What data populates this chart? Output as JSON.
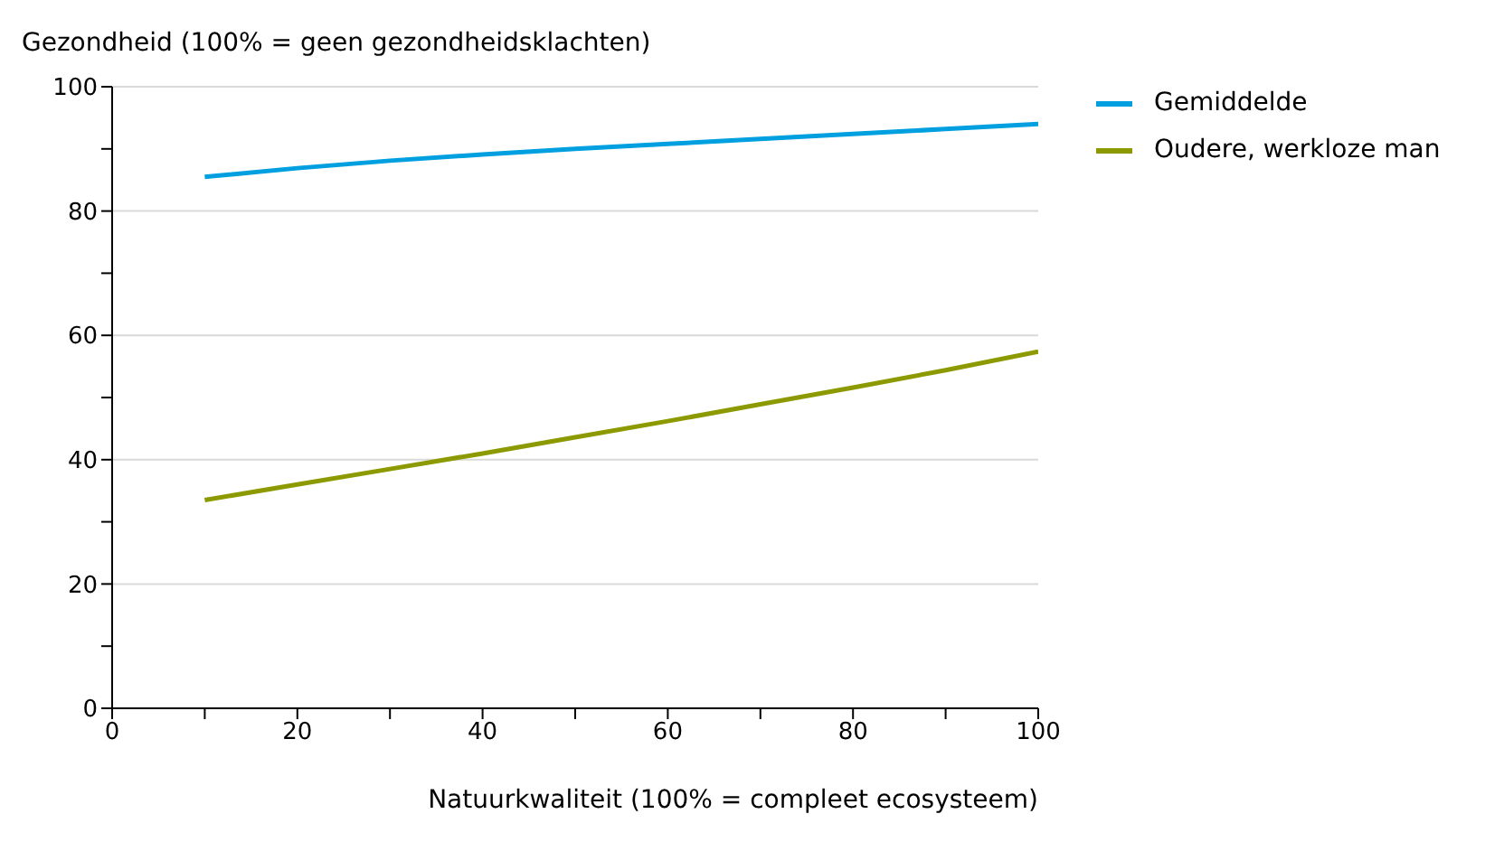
{
  "chart_data": {
    "type": "line",
    "ylabel": "Gezondheid (100% = geen gezondheidsklachten)",
    "xlabel": "Natuurkwaliteit (100% = compleet ecosysteem)",
    "x": [
      10,
      20,
      30,
      40,
      50,
      60,
      70,
      80,
      90,
      100
    ],
    "series": [
      {
        "name": "Gemiddelde",
        "color": "#00a0e0",
        "values": [
          85.5,
          86.9,
          88.1,
          89.1,
          90.0,
          90.8,
          91.6,
          92.4,
          93.2,
          94.0
        ]
      },
      {
        "name": "Oudere, werkloze man",
        "color": "#8c9a00",
        "values": [
          33.5,
          36.0,
          38.5,
          41.0,
          43.6,
          46.2,
          48.9,
          51.6,
          54.4,
          57.4
        ]
      }
    ],
    "xlim": [
      0,
      100
    ],
    "xticks": [
      0,
      {
        "value": 10,
        "label": null
      },
      20,
      {
        "value": 30,
        "label": null
      },
      40,
      {
        "value": 50,
        "label": null
      },
      60,
      {
        "value": 70,
        "label": null
      },
      80,
      {
        "value": 90,
        "label": null
      },
      100
    ],
    "ylim": [
      0,
      100
    ],
    "yticks": [
      0,
      {
        "value": 10,
        "label": null
      },
      20,
      {
        "value": 30,
        "label": null
      },
      40,
      {
        "value": 50,
        "label": null
      },
      60,
      {
        "value": 70,
        "label": null
      },
      80,
      {
        "value": 90,
        "label": null
      },
      100
    ],
    "grid": "y",
    "legend": "right",
    "marker": "none",
    "line_style": "solid"
  }
}
